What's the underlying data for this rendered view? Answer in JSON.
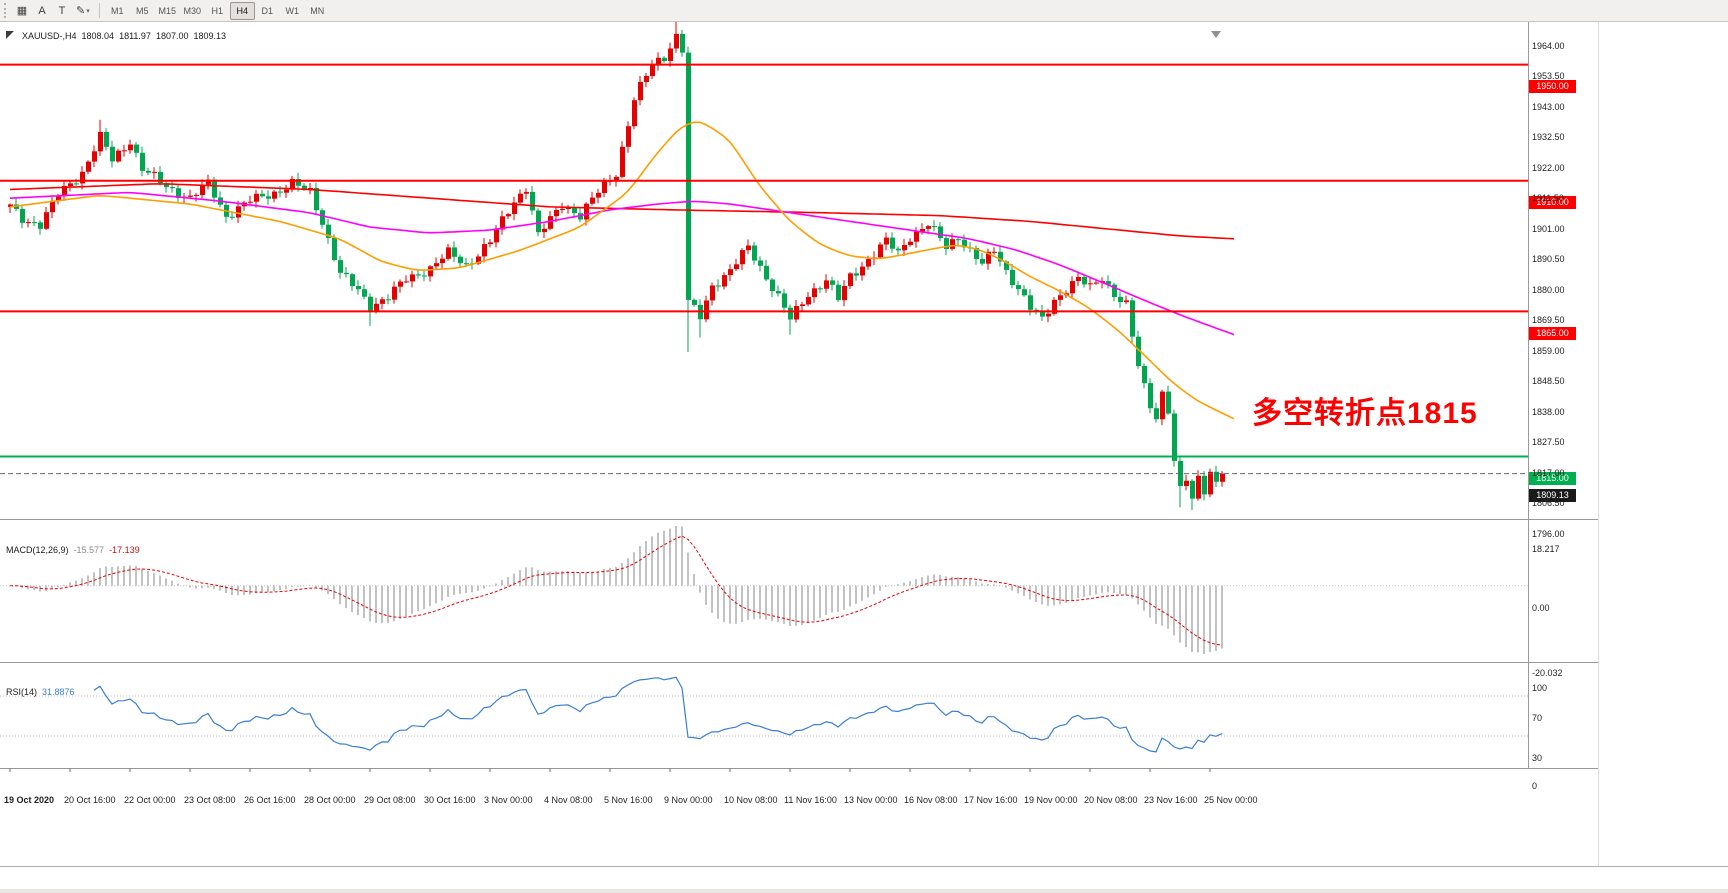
{
  "toolbar": {
    "tools": [
      {
        "name": "chart-window-tool",
        "glyph": "▦"
      },
      {
        "name": "text-label-tool",
        "glyph": "A"
      },
      {
        "name": "text-tool",
        "glyph": "T"
      },
      {
        "name": "draw-tool",
        "glyph": "✎",
        "caret": true
      }
    ],
    "timeframes": [
      "M1",
      "M5",
      "M15",
      "M30",
      "H1",
      "H4",
      "D1",
      "W1",
      "MN"
    ],
    "active_timeframe": "H4"
  },
  "chart": {
    "info": {
      "symbol_period": "XAUUSD-,H4",
      "open": "1808.04",
      "high": "1811.97",
      "low": "1807.00",
      "close": "1809.13"
    }
  },
  "chart_data": {
    "type": "candlestick",
    "symbol": "XAUUSD-",
    "timeframe": "H4",
    "price_axis": {
      "min": 1794,
      "max": 1969,
      "tick_step": 10.5,
      "ticks": [
        [
          1964.0,
          "1964.00"
        ],
        [
          1953.5,
          "1953.50"
        ],
        [
          1943.0,
          "1943.00"
        ],
        [
          1932.5,
          "1932.50"
        ],
        [
          1922.0,
          "1922.00"
        ],
        [
          1911.5,
          "1911.50"
        ],
        [
          1901.0,
          "1901.00"
        ],
        [
          1890.5,
          "1890.50"
        ],
        [
          1880.0,
          "1880.00"
        ],
        [
          1869.5,
          "1869.50"
        ],
        [
          1859.0,
          "1859.00"
        ],
        [
          1848.5,
          "1848.50"
        ],
        [
          1838.0,
          "1838.00"
        ],
        [
          1827.5,
          "1827.50"
        ],
        [
          1817.0,
          "1817.00"
        ],
        [
          1806.5,
          "1806.50"
        ],
        [
          1796.0,
          "1796.00"
        ]
      ]
    },
    "time_axis": {
      "ticks": [
        {
          "bar": 0,
          "label": "19 Oct 2020",
          "bold": true
        },
        {
          "bar": 10,
          "label": "20 Oct 16:00"
        },
        {
          "bar": 20,
          "label": "22 Oct 00:00"
        },
        {
          "bar": 30,
          "label": "23 Oct 08:00"
        },
        {
          "bar": 40,
          "label": "26 Oct 16:00"
        },
        {
          "bar": 50,
          "label": "28 Oct 00:00"
        },
        {
          "bar": 60,
          "label": "29 Oct 08:00"
        },
        {
          "bar": 70,
          "label": "30 Oct 16:00"
        },
        {
          "bar": 80,
          "label": "3 Nov 00:00"
        },
        {
          "bar": 90,
          "label": "4 Nov 08:00"
        },
        {
          "bar": 100,
          "label": "5 Nov 16:00"
        },
        {
          "bar": 110,
          "label": "9 Nov 00:00"
        },
        {
          "bar": 120,
          "label": "10 Nov 08:00"
        },
        {
          "bar": 130,
          "label": "11 Nov 16:00"
        },
        {
          "bar": 140,
          "label": "13 Nov 00:00"
        },
        {
          "bar": 150,
          "label": "16 Nov 08:00"
        },
        {
          "bar": 160,
          "label": "17 Nov 16:00"
        },
        {
          "bar": 170,
          "label": "19 Nov 00:00"
        },
        {
          "bar": 180,
          "label": "20 Nov 08:00"
        },
        {
          "bar": 190,
          "label": "23 Nov 16:00"
        },
        {
          "bar": 200,
          "label": "25 Nov 00:00"
        }
      ]
    },
    "candles": {
      "count": 203,
      "up_color": "#e60000",
      "down_color": "#00a650",
      "close_anchors": [
        [
          0,
          1901
        ],
        [
          2,
          1897
        ],
        [
          5,
          1895
        ],
        [
          8,
          1905
        ],
        [
          12,
          1913
        ],
        [
          15,
          1925
        ],
        [
          17,
          1917
        ],
        [
          20,
          1924
        ],
        [
          22,
          1914
        ],
        [
          26,
          1908
        ],
        [
          30,
          1904
        ],
        [
          33,
          1909
        ],
        [
          36,
          1898
        ],
        [
          40,
          1903
        ],
        [
          44,
          1906
        ],
        [
          47,
          1909
        ],
        [
          50,
          1906
        ],
        [
          52,
          1896
        ],
        [
          55,
          1878
        ],
        [
          58,
          1872
        ],
        [
          60,
          1867
        ],
        [
          63,
          1870
        ],
        [
          66,
          1876
        ],
        [
          70,
          1880
        ],
        [
          73,
          1885
        ],
        [
          76,
          1881
        ],
        [
          80,
          1889
        ],
        [
          84,
          1903
        ],
        [
          86,
          1908
        ],
        [
          88,
          1891
        ],
        [
          92,
          1902
        ],
        [
          95,
          1898
        ],
        [
          98,
          1906
        ],
        [
          101,
          1913
        ],
        [
          104,
          1938
        ],
        [
          107,
          1950
        ],
        [
          109,
          1953
        ],
        [
          111,
          1960
        ],
        [
          112,
          1955
        ],
        [
          113,
          1868
        ],
        [
          115,
          1863
        ],
        [
          117,
          1874
        ],
        [
          120,
          1879
        ],
        [
          123,
          1887
        ],
        [
          126,
          1877
        ],
        [
          128,
          1870
        ],
        [
          130,
          1862
        ],
        [
          133,
          1871
        ],
        [
          136,
          1876
        ],
        [
          138,
          1869
        ],
        [
          140,
          1877
        ],
        [
          143,
          1883
        ],
        [
          146,
          1889
        ],
        [
          148,
          1885
        ],
        [
          150,
          1891
        ],
        [
          153,
          1895
        ],
        [
          156,
          1887
        ],
        [
          158,
          1891
        ],
        [
          160,
          1886
        ],
        [
          162,
          1881
        ],
        [
          164,
          1886
        ],
        [
          166,
          1879
        ],
        [
          168,
          1873
        ],
        [
          170,
          1866
        ],
        [
          172,
          1862
        ],
        [
          174,
          1869
        ],
        [
          176,
          1873
        ],
        [
          178,
          1876
        ],
        [
          180,
          1873
        ],
        [
          182,
          1877
        ],
        [
          184,
          1871
        ],
        [
          186,
          1867
        ],
        [
          187,
          1856
        ],
        [
          188,
          1846
        ],
        [
          189,
          1839
        ],
        [
          190,
          1833
        ],
        [
          191,
          1829
        ],
        [
          192,
          1837
        ],
        [
          193,
          1831
        ],
        [
          194,
          1813
        ],
        [
          195,
          1803
        ],
        [
          196,
          1807
        ],
        [
          197,
          1800
        ],
        [
          198,
          1808
        ],
        [
          199,
          1804
        ],
        [
          200,
          1810
        ],
        [
          201,
          1806
        ],
        [
          202,
          1809.13
        ]
      ],
      "wick_overrides": {
        "high": [
          [
            15,
            1931
          ],
          [
            111,
            1965.3
          ]
        ],
        "low": [
          [
            60,
            1860
          ],
          [
            113,
            1851
          ],
          [
            115,
            1856
          ],
          [
            130,
            1857
          ],
          [
            195,
            1797.5
          ],
          [
            197,
            1796.6
          ]
        ]
      }
    },
    "moving_averages": [
      {
        "name": "ma-slow-red-line",
        "color": "#ff0000",
        "anchors": [
          [
            0,
            1907
          ],
          [
            25,
            1909
          ],
          [
            50,
            1907
          ],
          [
            70,
            1904
          ],
          [
            90,
            1901
          ],
          [
            110,
            1900
          ],
          [
            135,
            1899
          ],
          [
            155,
            1898
          ],
          [
            170,
            1896
          ],
          [
            185,
            1893
          ],
          [
            195,
            1891
          ],
          [
            204,
            1890
          ]
        ]
      },
      {
        "name": "ma-mid-magenta-line",
        "color": "#ff00ff",
        "anchors": [
          [
            0,
            1904
          ],
          [
            20,
            1906
          ],
          [
            35,
            1903
          ],
          [
            50,
            1899
          ],
          [
            60,
            1894
          ],
          [
            70,
            1892
          ],
          [
            80,
            1893
          ],
          [
            90,
            1896
          ],
          [
            100,
            1900
          ],
          [
            108,
            1902
          ],
          [
            114,
            1903
          ],
          [
            120,
            1902
          ],
          [
            130,
            1899
          ],
          [
            140,
            1896
          ],
          [
            150,
            1893
          ],
          [
            160,
            1890
          ],
          [
            168,
            1886
          ],
          [
            175,
            1881
          ],
          [
            182,
            1875
          ],
          [
            190,
            1868
          ],
          [
            196,
            1863
          ],
          [
            204,
            1857
          ]
        ]
      },
      {
        "name": "ma-fast-orange-line",
        "color": "#ff9d00",
        "anchors": [
          [
            0,
            1901
          ],
          [
            15,
            1905
          ],
          [
            30,
            1902
          ],
          [
            45,
            1896
          ],
          [
            55,
            1890
          ],
          [
            62,
            1882
          ],
          [
            68,
            1879
          ],
          [
            75,
            1880
          ],
          [
            85,
            1886
          ],
          [
            95,
            1894
          ],
          [
            103,
            1906
          ],
          [
            108,
            1920
          ],
          [
            112,
            1929
          ],
          [
            115,
            1931
          ],
          [
            120,
            1924
          ],
          [
            125,
            1908
          ],
          [
            130,
            1896
          ],
          [
            135,
            1888
          ],
          [
            140,
            1884
          ],
          [
            145,
            1883
          ],
          [
            150,
            1885
          ],
          [
            155,
            1887
          ],
          [
            158,
            1888
          ],
          [
            162,
            1886
          ],
          [
            166,
            1882
          ],
          [
            170,
            1877
          ],
          [
            175,
            1872
          ],
          [
            180,
            1866
          ],
          [
            185,
            1858
          ],
          [
            190,
            1848
          ],
          [
            194,
            1840
          ],
          [
            198,
            1834
          ],
          [
            204,
            1828
          ]
        ]
      }
    ],
    "hlines": [
      {
        "price": 1950,
        "label": "1950.00",
        "color": "#ff0000"
      },
      {
        "price": 1910,
        "label": "1910.00",
        "color": "#ff0000"
      },
      {
        "price": 1865,
        "label": "1865.00",
        "color": "#ff0000"
      },
      {
        "price": 1815,
        "label": "1815.00",
        "color": "#00b050"
      }
    ],
    "current_price": {
      "value": 1809.13,
      "label": "1809.13",
      "line_color": "#5b6a78",
      "flag_color": "#1a1a1a"
    },
    "indicators": {
      "macd": {
        "title": "MACD(12,26,9)",
        "value": "-15.577",
        "signal_value": "-17.139",
        "params": {
          "fast": 12,
          "slow": 26,
          "signal": 9
        },
        "scale_labels": [
          "18.217",
          "0.00",
          "-20.032"
        ],
        "histogram_color": "#b2b2b2",
        "signal_color": "#ee0000"
      },
      "rsi": {
        "title": "RSI(14)",
        "value": "31.8876",
        "period": 14,
        "scale_labels": [
          "100",
          "70",
          "30",
          "0"
        ],
        "levels": [
          70,
          30
        ],
        "line_color": "#3a7fd5"
      }
    },
    "annotation": {
      "text": "多空转折点1815",
      "color": "#ff0000"
    }
  }
}
